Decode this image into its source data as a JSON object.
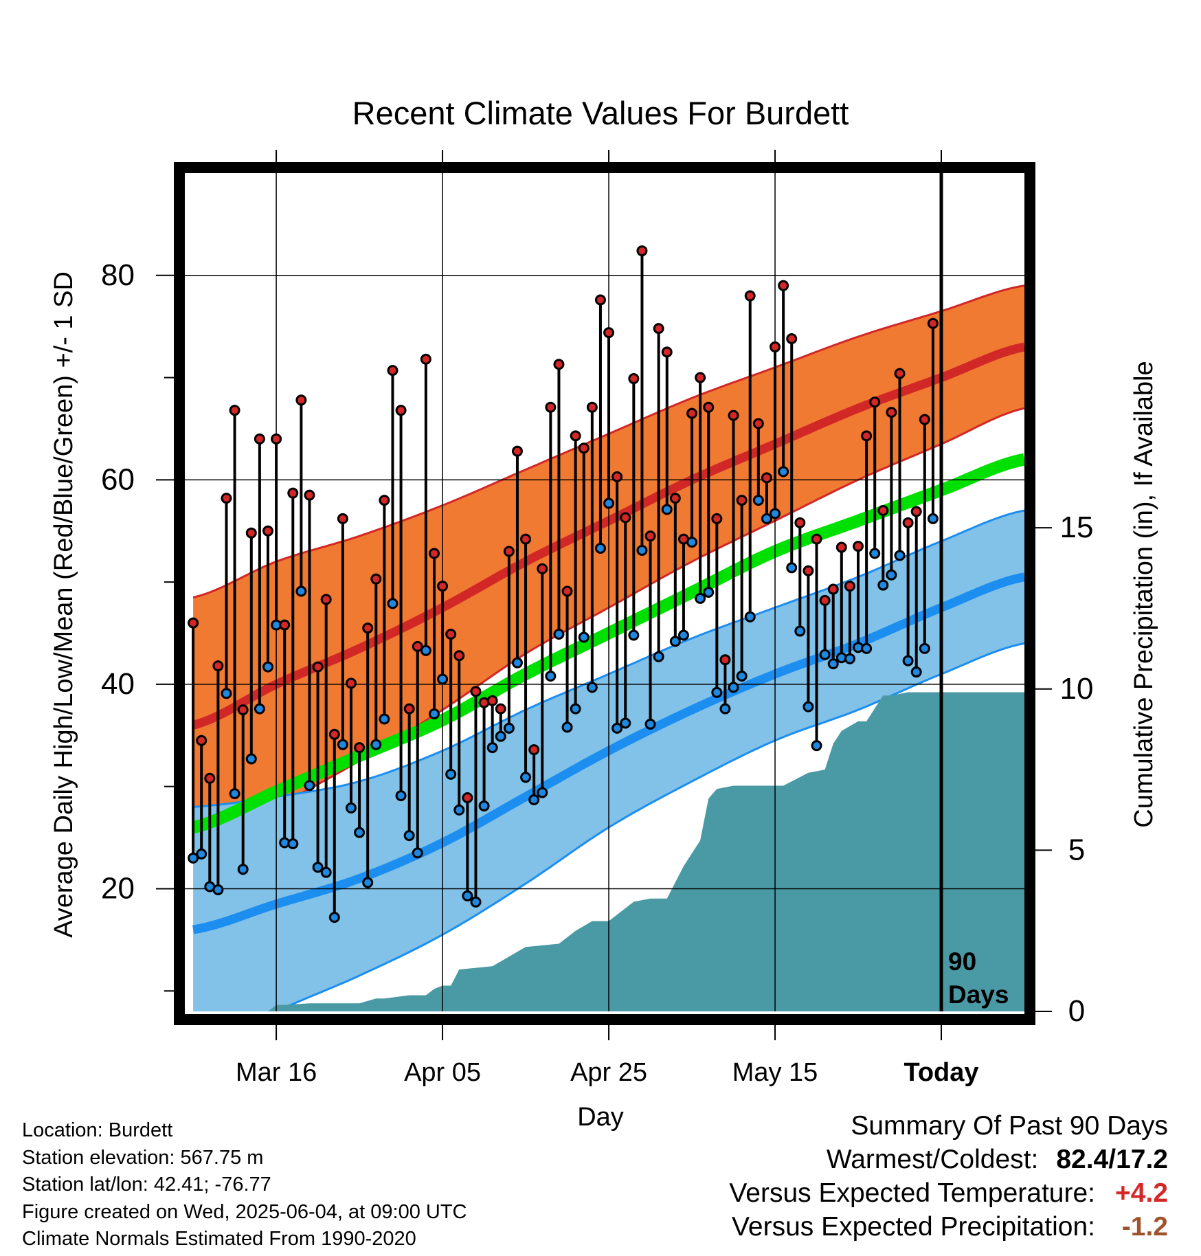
{
  "chart_data": {
    "type": "line",
    "title": "Recent Climate Values For Burdett",
    "xlabel": "Day",
    "ylabel": "Average Daily High/Low/Mean (Red/Blue/Green) +/- 1 SD",
    "y2label": "Cumulative Precipitation (in), If Available",
    "x_tick_labels": [
      "Mar 16",
      "Apr 05",
      "Apr 25",
      "May 15",
      "Today"
    ],
    "x_tick_days": [
      10,
      30,
      50,
      70,
      90
    ],
    "x_range": [
      -1,
      100
    ],
    "ylim": [
      8,
      90
    ],
    "y_ticks": [
      20,
      40,
      60,
      80
    ],
    "y2lim": [
      0,
      26
    ],
    "y2_ticks": [
      0,
      5,
      10,
      15
    ],
    "today_label": [
      "90",
      "Days"
    ],
    "colors": {
      "high_band": "#f07a31",
      "high_line": "#d22727",
      "low_band": "#82c1e8",
      "low_line": "#1c8ef0",
      "mean_line": "#00e000",
      "precip": "#4a9aa5",
      "high_dot": "#d62728",
      "low_dot": "#1f88e0"
    },
    "normals": {
      "days": [
        0,
        10,
        20,
        30,
        40,
        50,
        60,
        70,
        80,
        90,
        100
      ],
      "high": [
        36,
        40,
        43.5,
        47.5,
        52,
        56,
        60,
        63.5,
        67,
        70,
        73
      ],
      "high_sd": [
        12.5,
        12,
        11,
        10,
        9,
        8.5,
        8,
        7.5,
        7,
        6.5,
        6
      ],
      "low": [
        16,
        18.5,
        21,
        24.5,
        29,
        33.5,
        37.5,
        41,
        44,
        47.5,
        50.5
      ],
      "low_sd": [
        12,
        10.5,
        9.5,
        9,
        8.5,
        7.5,
        7,
        6.5,
        6.5,
        6.5,
        6.5
      ],
      "mean": [
        26,
        29.5,
        33,
        36.5,
        41,
        45,
        49,
        53,
        56,
        59,
        62
      ]
    },
    "high_temps": [
      46,
      34.5,
      30.8,
      41.8,
      58.2,
      66.8,
      37.5,
      54.8,
      64,
      55,
      64,
      45.8,
      58.7,
      67.8,
      58.5,
      41.7,
      48.3,
      35.1,
      56.2,
      40.1,
      33.8,
      45.5,
      50.3,
      58,
      70.7,
      66.8,
      37.6,
      43.7,
      71.8,
      52.8,
      49.6,
      44.9,
      42.8,
      28.9,
      39.3,
      38.2,
      38.4,
      37.6,
      53,
      62.8,
      54.2,
      33.6,
      51.3,
      67.1,
      71.3,
      49.1,
      64.3,
      63.1,
      67.1,
      77.6,
      74.4,
      60.3,
      56.3,
      69.9,
      82.4,
      54.5,
      74.8,
      72.5,
      58.2,
      54.2,
      66.5,
      70,
      67.1,
      56.2,
      42.4,
      66.3,
      58,
      78,
      65.5,
      60.2,
      73,
      79,
      73.8,
      55.8,
      51.1,
      54.2,
      48.2,
      49.3,
      53.4,
      49.6,
      53.5,
      64.3,
      67.6,
      57,
      66.6,
      70.4,
      55.8,
      56.9,
      65.9,
      75.3
    ],
    "low_temps": [
      23,
      23.4,
      20.2,
      19.9,
      39.1,
      29.3,
      21.9,
      32.7,
      37.6,
      41.7,
      45.8,
      24.5,
      24.4,
      49.1,
      30.1,
      22.1,
      21.6,
      17.2,
      34.1,
      27.9,
      25.5,
      20.6,
      34.1,
      36.6,
      47.9,
      29.1,
      25.2,
      23.5,
      43.3,
      37.1,
      40.5,
      31.2,
      27.7,
      19.3,
      18.7,
      28.1,
      33.8,
      34.9,
      35.7,
      42.1,
      30.9,
      28.7,
      29.4,
      40.8,
      44.9,
      35.8,
      37.6,
      44.6,
      39.7,
      53.3,
      57.7,
      35.7,
      36.2,
      44.8,
      53.1,
      36.1,
      42.7,
      57.1,
      44.2,
      44.8,
      53.9,
      48.4,
      49,
      39.2,
      37.6,
      39.7,
      40.8,
      46.6,
      58,
      56.2,
      56.7,
      60.8,
      51.4,
      45.2,
      37.8,
      34,
      42.9,
      42,
      42.6,
      42.5,
      43.6,
      43.5,
      52.8,
      49.7,
      50.7,
      52.6,
      42.3,
      41.2,
      43.5,
      56.2
    ],
    "precip_cumulative": {
      "days": [
        -1,
        9,
        10,
        11,
        14,
        20,
        22,
        23,
        26,
        28,
        29,
        30,
        31,
        32,
        36,
        38,
        40,
        44,
        46,
        48,
        50,
        51,
        53,
        55,
        57,
        59,
        61,
        62,
        63,
        65,
        67,
        69,
        71,
        74,
        76,
        77,
        78,
        80,
        81,
        83,
        84,
        86,
        90,
        100
      ],
      "values": [
        0,
        0,
        0.2,
        0.2,
        0.25,
        0.25,
        0.4,
        0.4,
        0.5,
        0.5,
        0.7,
        0.8,
        0.8,
        1.3,
        1.4,
        1.7,
        2.0,
        2.1,
        2.5,
        2.8,
        2.8,
        3.0,
        3.4,
        3.5,
        3.5,
        4.5,
        5.3,
        6.6,
        6.9,
        7.0,
        7.0,
        7.0,
        7.0,
        7.4,
        7.5,
        8.3,
        8.7,
        9.0,
        9.0,
        9.8,
        9.8,
        9.9,
        9.9,
        9.9
      ]
    }
  },
  "footer": {
    "location": "Location: Burdett",
    "elevation": "Station elevation: 567.75 m",
    "latlon": "Station lat/lon: 42.41; -76.77",
    "created": "Figure created on Wed, 2025-06-04, at 09:00 UTC",
    "normals": "Climate Normals Estimated From 1990-2020"
  },
  "summary": {
    "heading": "Summary Of Past 90 Days",
    "warmest_label": "Warmest/Coldest:",
    "warmest_value": "82.4/17.2",
    "temp_label": "Versus Expected Temperature:",
    "temp_value": "+4.2",
    "temp_color": "#d62728",
    "precip_label": "Versus Expected Precipitation:",
    "precip_value": "-1.2",
    "precip_color": "#a0522d"
  }
}
